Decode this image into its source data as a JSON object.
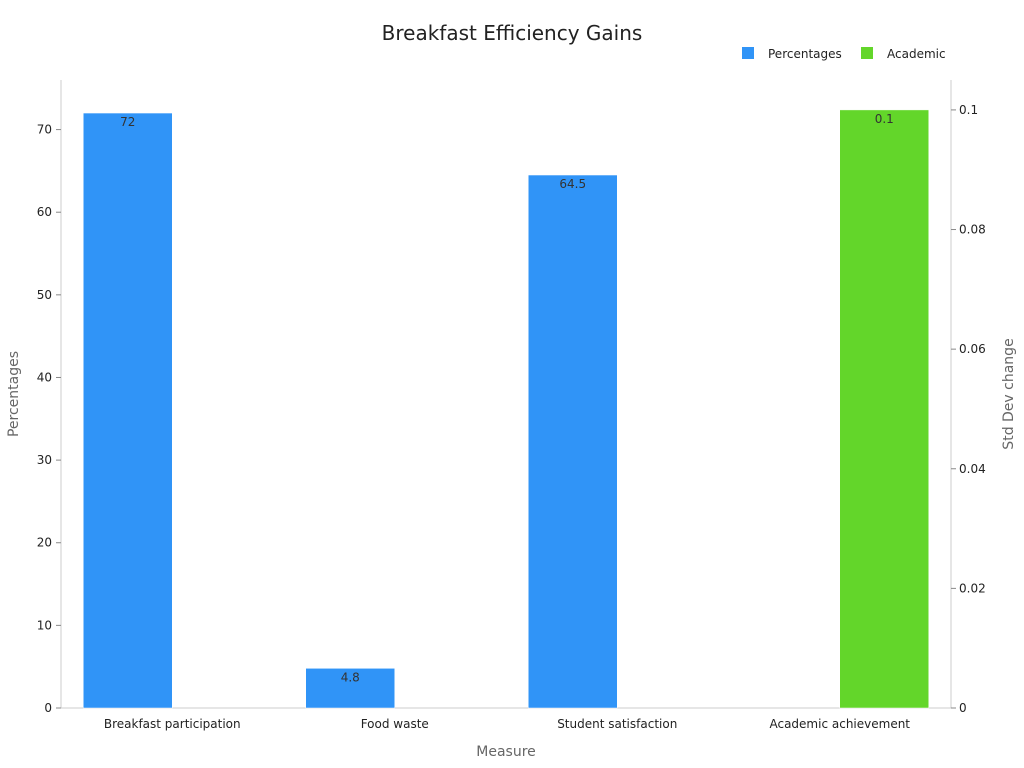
{
  "chart_data": {
    "type": "bar",
    "title": "Breakfast Efficiency Gains",
    "xlabel": "Measure",
    "ylabel": "Percentages",
    "y2label": "Std Dev change",
    "categories": [
      "Breakfast participation",
      "Food waste",
      "Student satisfaction",
      "Academic achievement"
    ],
    "ylim": [
      0,
      76
    ],
    "y2lim": [
      0,
      0.105
    ],
    "yticks": [
      0,
      10,
      20,
      30,
      40,
      50,
      60,
      70
    ],
    "y2ticks": [
      "0",
      "0.02",
      "0.04",
      "0.06",
      "0.08",
      "0.1"
    ],
    "grid": false,
    "legend_position": "top-right",
    "series": [
      {
        "name": "Percentages",
        "axis": "left",
        "color": "#3094f7",
        "values": [
          72,
          4.8,
          64.5,
          null
        ],
        "labels": [
          "72",
          "4.8",
          "64.5",
          ""
        ]
      },
      {
        "name": "Academic",
        "axis": "right",
        "color": "#63d62a",
        "values": [
          null,
          null,
          null,
          0.1
        ],
        "labels": [
          "",
          "",
          "",
          "0.1"
        ]
      }
    ]
  }
}
